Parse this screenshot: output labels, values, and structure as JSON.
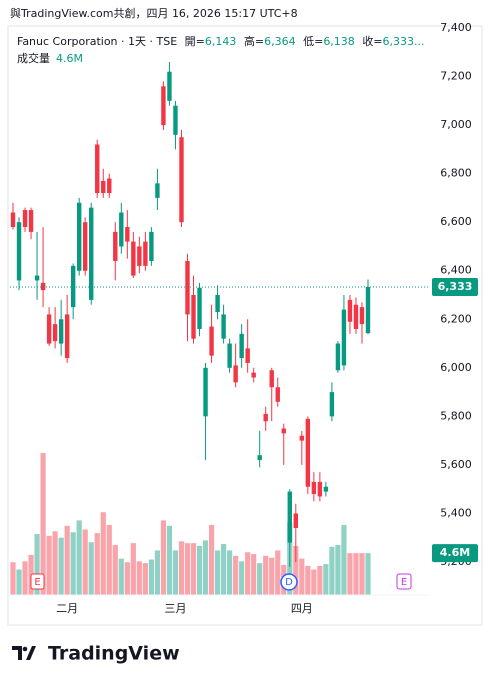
{
  "attribution": "與TradingView.com共創，四月 16, 2026 15:17 UTC+8",
  "footer": {
    "brand": "TradingView"
  },
  "chart_data": {
    "type": "candlestick",
    "legend_title": "Fanuc Corporation · 1天 · TSE",
    "ohlc_legend": [
      {
        "label": "開=",
        "value": "6,143"
      },
      {
        "label": "高=",
        "value": "6,364"
      },
      {
        "label": "低=",
        "value": "6,138"
      },
      {
        "label": "收=",
        "value": "6,333..."
      }
    ],
    "volume_title": "成交量",
    "volume_label": "4.6M",
    "last_price_label": "6,333",
    "up_color": "#089981",
    "down_color": "#f23645",
    "categories": [
      null,
      null,
      null,
      null,
      null,
      null,
      null,
      null,
      null,
      "二月",
      null,
      null,
      null,
      null,
      null,
      null,
      null,
      null,
      null,
      null,
      null,
      null,
      null,
      null,
      null,
      null,
      null,
      "三月",
      null,
      null,
      null,
      null,
      null,
      null,
      null,
      null,
      null,
      null,
      null,
      null,
      null,
      null,
      null,
      null,
      null,
      null,
      null,
      null,
      "四月",
      null,
      null,
      null,
      null,
      null,
      null,
      null,
      null,
      null,
      null,
      null
    ],
    "ohlc": {
      "open": [
        6640,
        6360,
        6650,
        6650,
        6360,
        6350,
        6220,
        6180,
        6100,
        6220,
        6250,
        6400,
        6600,
        6280,
        6920,
        6770,
        6780,
        6560,
        6500,
        6580,
        6520,
        6500,
        6520,
        6440,
        6700,
        7160,
        7100,
        6960,
        6950,
        6440,
        6300,
        6160,
        5800,
        6170,
        6230,
        6120,
        6000,
        6010,
        6040,
        6080,
        5980,
        5620,
        5810,
        5990,
        5920,
        5750,
        5280,
        5400,
        5720,
        5790,
        5530,
        5530,
        5490,
        5800,
        5990,
        6010,
        6280,
        6260,
        6250,
        6143
      ],
      "high": [
        6680,
        6620,
        6660,
        6660,
        6560,
        6580,
        6250,
        6250,
        6280,
        6300,
        6430,
        6700,
        6620,
        6680,
        6940,
        6820,
        6800,
        6600,
        6680,
        6650,
        6560,
        6540,
        6560,
        6580,
        6820,
        7180,
        7260,
        7100,
        6980,
        6470,
        6380,
        6350,
        6020,
        6260,
        6340,
        6260,
        6120,
        6100,
        6180,
        6200,
        6000,
        5740,
        5840,
        6000,
        5960,
        5770,
        5500,
        5440,
        5740,
        5800,
        5570,
        5570,
        5530,
        5940,
        6110,
        6300,
        6300,
        6290,
        6270,
        6364
      ],
      "low": [
        6570,
        6320,
        6560,
        6530,
        6280,
        6250,
        6090,
        6080,
        6050,
        6020,
        6200,
        6380,
        6380,
        6260,
        6700,
        6700,
        6700,
        6360,
        6470,
        6450,
        6370,
        6390,
        6400,
        6420,
        6650,
        6980,
        7080,
        6900,
        6580,
        6110,
        6100,
        6130,
        5620,
        6020,
        6200,
        6100,
        5980,
        5920,
        6000,
        5980,
        5940,
        5590,
        5740,
        5780,
        5840,
        5600,
        5180,
        5200,
        5600,
        5480,
        5450,
        5450,
        5470,
        5780,
        5980,
        5990,
        6140,
        6140,
        6100,
        6138
      ],
      "close": [
        6580,
        6600,
        6580,
        6560,
        6380,
        6320,
        6100,
        6110,
        6200,
        6040,
        6420,
        6680,
        6400,
        6660,
        6720,
        6720,
        6720,
        6440,
        6640,
        6520,
        6380,
        6420,
        6420,
        6560,
        6760,
        7000,
        7220,
        7080,
        6600,
        6220,
        6120,
        6330,
        6000,
        6050,
        6300,
        6220,
        6100,
        5940,
        6140,
        6020,
        5960,
        5640,
        5780,
        5920,
        5860,
        5730,
        5490,
        5340,
        5700,
        5510,
        5480,
        5470,
        5510,
        5900,
        6100,
        6240,
        6190,
        6160,
        6180,
        6333
      ]
    },
    "volume": [
      3.6,
      2.8,
      3.7,
      4.4,
      6.7,
      15.6,
      6.5,
      7.0,
      6.3,
      7.6,
      6.9,
      8.2,
      7.2,
      5.8,
      6.8,
      9.1,
      7.7,
      5.5,
      4.0,
      3.6,
      5.7,
      3.7,
      3.5,
      3.9,
      4.9,
      8.2,
      7.6,
      4.9,
      5.9,
      5.7,
      5.7,
      5.4,
      6.0,
      7.7,
      4.9,
      5.6,
      4.9,
      4.3,
      3.7,
      4.7,
      4.5,
      3.5,
      4.3,
      4.1,
      4.9,
      3.3,
      8.0,
      5.4,
      4.0,
      3.2,
      2.8,
      3.2,
      3.4,
      5.3,
      5.5,
      7.7,
      4.6,
      4.6,
      4.6,
      4.6
    ],
    "ylim": [
      5200,
      7400
    ],
    "yticks": [
      {
        "value": 5200,
        "label": "5,200"
      },
      {
        "value": 5400,
        "label": "5,400"
      },
      {
        "value": 5600,
        "label": "5,600"
      },
      {
        "value": 5800,
        "label": "5,800"
      },
      {
        "value": 6000,
        "label": "6,000"
      },
      {
        "value": 6200,
        "label": "6,200"
      },
      {
        "value": 6400,
        "label": "6,400"
      },
      {
        "value": 6600,
        "label": "6,600"
      },
      {
        "value": 6800,
        "label": "6,800"
      },
      {
        "value": 7000,
        "label": "7,000"
      },
      {
        "value": 7200,
        "label": "7,200"
      },
      {
        "value": 7400,
        "label": "7,400"
      }
    ],
    "events": [
      "E",
      "D",
      "E"
    ]
  }
}
